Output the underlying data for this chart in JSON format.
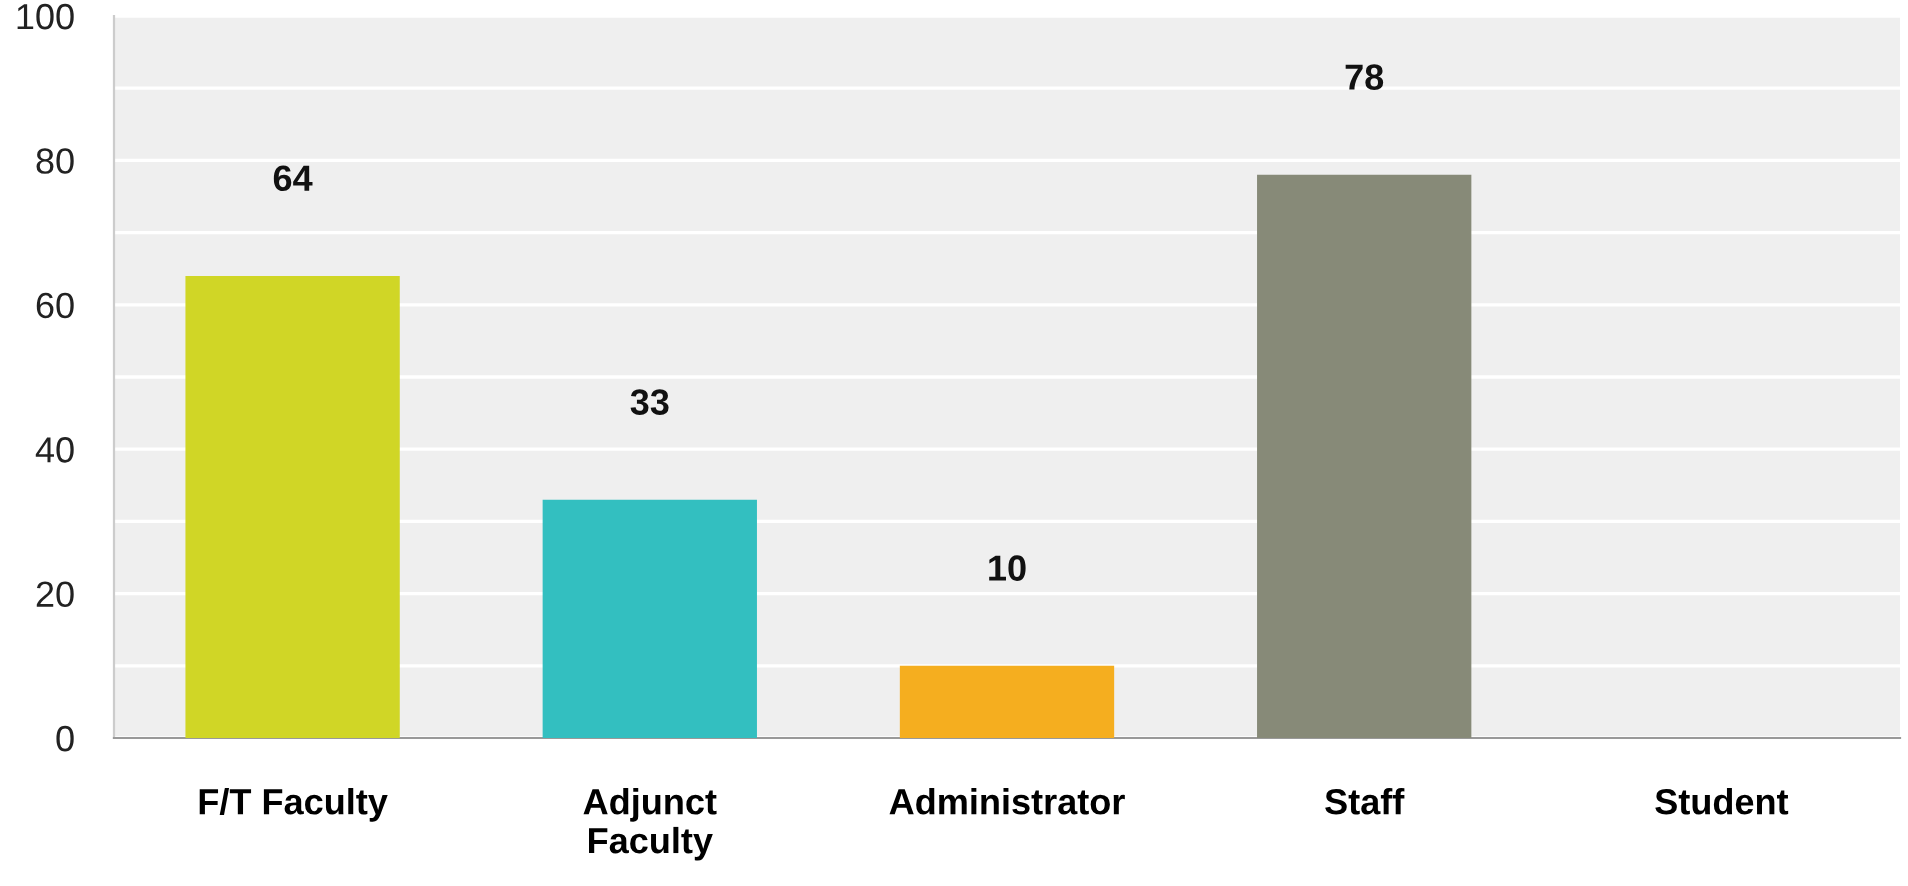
{
  "chart_data": {
    "type": "bar",
    "categories": [
      "F/T Faculty",
      "Adjunct\nFaculty",
      "Administrator",
      "Staff",
      "Student"
    ],
    "values": [
      64,
      33,
      10,
      78,
      0
    ],
    "colors": [
      "#d0d626",
      "#33bfc0",
      "#f5ae1f",
      "#878a78",
      "#878a78"
    ],
    "value_labels": [
      "64",
      "33",
      "10",
      "78",
      null
    ],
    "ylim": [
      0,
      100
    ],
    "yticks": [
      0,
      {
        "value": 10,
        "label": null
      },
      20,
      {
        "value": 30,
        "label": null
      },
      40,
      {
        "value": 50,
        "label": null
      },
      60,
      {
        "value": 70,
        "label": null
      },
      80,
      {
        "value": 90,
        "label": null
      },
      100
    ],
    "grid": "y"
  }
}
